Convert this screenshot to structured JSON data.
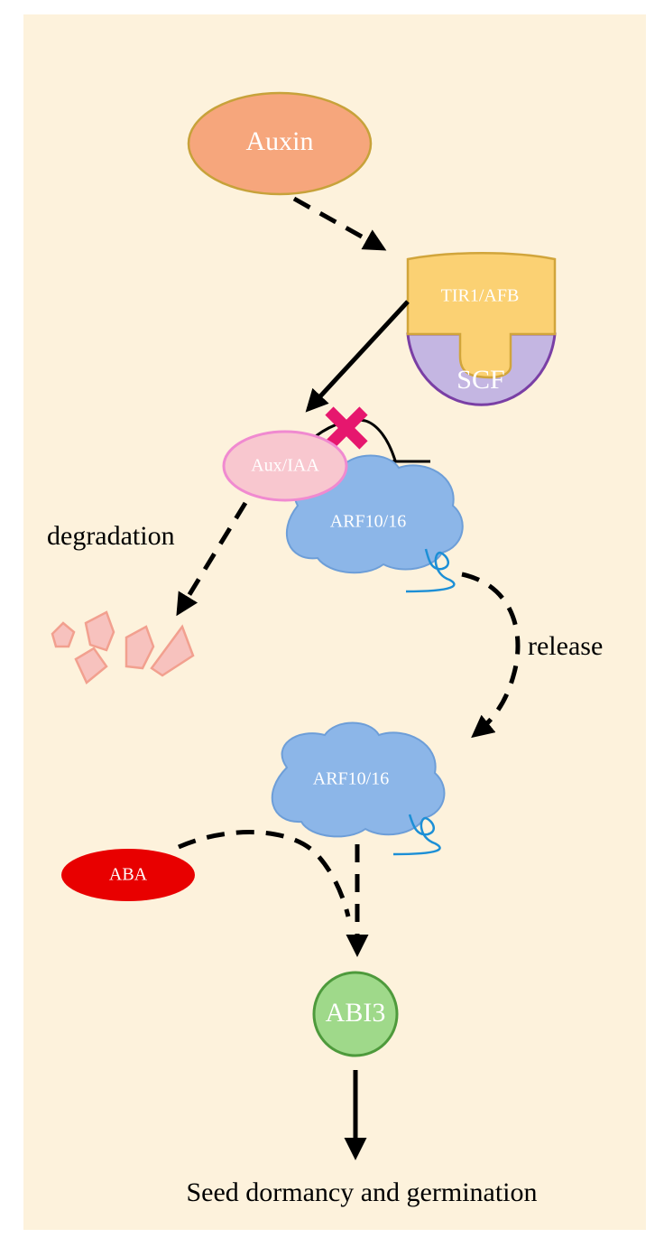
{
  "nodes": {
    "auxin": "Auxin",
    "tir1_afb": "TIR1/AFB",
    "scf": "SCF",
    "aux_iaa": "Aux/IAA",
    "arf_bound": "ARF10/16",
    "arf_free": "ARF10/16",
    "aba": "ABA",
    "abi3": "ABI3"
  },
  "labels": {
    "degradation": "degradation",
    "release": "release",
    "outcome": "Seed dormancy and germination"
  },
  "colors": {
    "background": "#fdf2dc",
    "auxin_fill": "#f6a67c",
    "auxin_stroke": "#c7a23a",
    "tir1_fill": "#fbd173",
    "tir1_stroke": "#d1a53b",
    "scf_fill": "#c4b6e2",
    "scf_stroke": "#7a3fa5",
    "aux_iaa_fill": "#f8c7cf",
    "aux_iaa_stroke": "#f08ad0",
    "arf_fill": "#8cb6e8",
    "arf_stroke": "#6d9ed8",
    "arf_tail": "#1c8fd6",
    "aba_fill": "#e80000",
    "abi3_fill": "#9fd98a",
    "abi3_stroke": "#4e9a3c",
    "fragments_fill": "#f7c2be",
    "fragments_stroke": "#f2a08f",
    "block_mark": "#e6176e",
    "arrow": "#000000"
  }
}
